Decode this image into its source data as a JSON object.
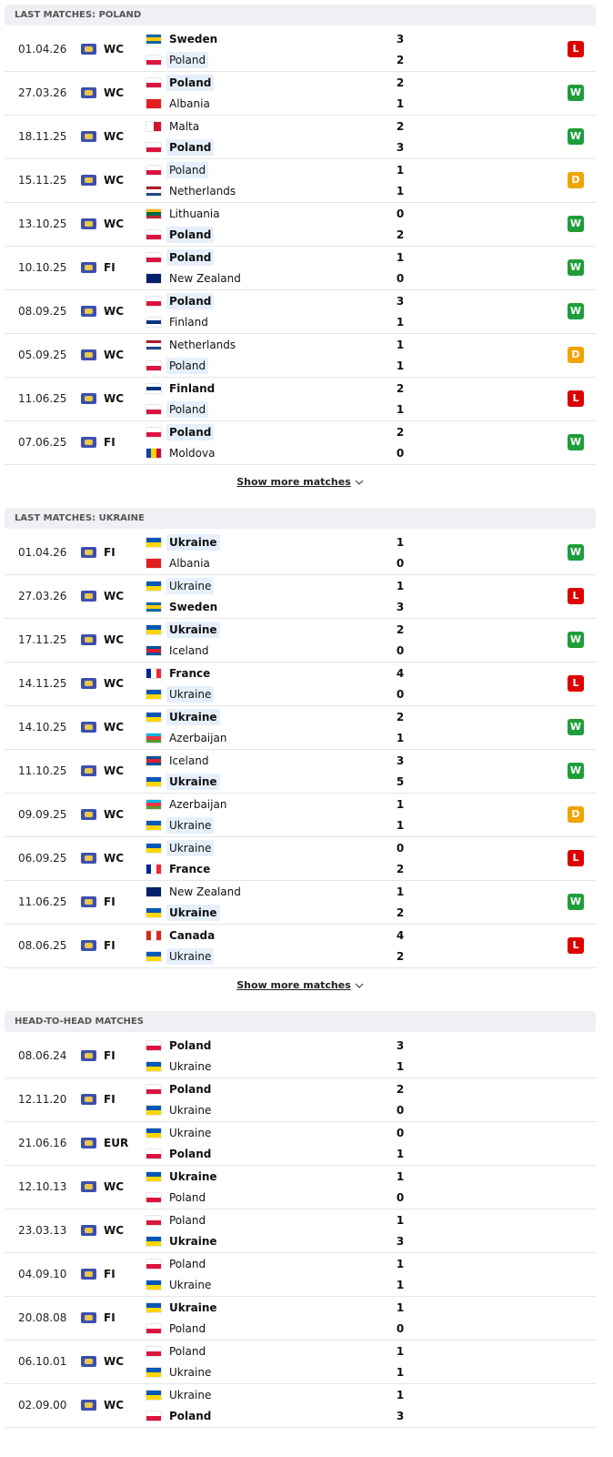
{
  "result_colors": {
    "W": "#1f9d3b",
    "L": "#dc0000",
    "D": "#f0a400"
  },
  "flags": {
    "Poland": {
      "h": [
        "#ffffff",
        "#dc143c"
      ]
    },
    "Sweden": {
      "h": [
        "#006aa7",
        "#fecc00",
        "#006aa7"
      ]
    },
    "Albania": {
      "h": [
        "#e41e20"
      ]
    },
    "Malta": {
      "v": [
        "#ffffff",
        "#cf142b"
      ]
    },
    "Netherlands": {
      "h": [
        "#ae1c28",
        "#ffffff",
        "#21468b"
      ]
    },
    "Lithuania": {
      "h": [
        "#fdb913",
        "#006a44",
        "#c1272d"
      ]
    },
    "New Zealand": {
      "h": [
        "#012169"
      ]
    },
    "Finland": {
      "h": [
        "#ffffff",
        "#003580",
        "#ffffff"
      ]
    },
    "Moldova": {
      "v": [
        "#0046ae",
        "#ffd200",
        "#cc092f"
      ]
    },
    "Ukraine": {
      "h": [
        "#0057b7",
        "#ffd700"
      ]
    },
    "Iceland": {
      "h": [
        "#02529c",
        "#dc1e35",
        "#02529c"
      ]
    },
    "France": {
      "v": [
        "#002395",
        "#ffffff",
        "#ed2939"
      ]
    },
    "Azerbaijan": {
      "h": [
        "#00b5e2",
        "#ef3340",
        "#509e2f"
      ]
    },
    "Canada": {
      "v": [
        "#d52b1e",
        "#ffffff",
        "#d52b1e"
      ]
    }
  },
  "sections": [
    {
      "title": "LAST MATCHES: POLAND",
      "show_more": "Show more matches",
      "matches": [
        {
          "date": "01.04.26",
          "comp": "WC",
          "home": "Sweden",
          "home_score": 3,
          "away": "Poland",
          "away_score": 2,
          "result": "L"
        },
        {
          "date": "27.03.26",
          "comp": "WC",
          "home": "Poland",
          "home_score": 2,
          "away": "Albania",
          "away_score": 1,
          "result": "W"
        },
        {
          "date": "18.11.25",
          "comp": "WC",
          "home": "Malta",
          "home_score": 2,
          "away": "Poland",
          "away_score": 3,
          "result": "W"
        },
        {
          "date": "15.11.25",
          "comp": "WC",
          "home": "Poland",
          "home_score": 1,
          "away": "Netherlands",
          "away_score": 1,
          "result": "D"
        },
        {
          "date": "13.10.25",
          "comp": "WC",
          "home": "Lithuania",
          "home_score": 0,
          "away": "Poland",
          "away_score": 2,
          "result": "W"
        },
        {
          "date": "10.10.25",
          "comp": "FI",
          "home": "Poland",
          "home_score": 1,
          "away": "New Zealand",
          "away_score": 0,
          "result": "W"
        },
        {
          "date": "08.09.25",
          "comp": "WC",
          "home": "Poland",
          "home_score": 3,
          "away": "Finland",
          "away_score": 1,
          "result": "W"
        },
        {
          "date": "05.09.25",
          "comp": "WC",
          "home": "Netherlands",
          "home_score": 1,
          "away": "Poland",
          "away_score": 1,
          "result": "D"
        },
        {
          "date": "11.06.25",
          "comp": "WC",
          "home": "Finland",
          "home_score": 2,
          "away": "Poland",
          "away_score": 1,
          "result": "L"
        },
        {
          "date": "07.06.25",
          "comp": "FI",
          "home": "Poland",
          "home_score": 2,
          "away": "Moldova",
          "away_score": 0,
          "result": "W"
        }
      ]
    },
    {
      "title": "LAST MATCHES: UKRAINE",
      "show_more": "Show more matches",
      "matches": [
        {
          "date": "01.04.26",
          "comp": "FI",
          "home": "Ukraine",
          "home_score": 1,
          "away": "Albania",
          "away_score": 0,
          "result": "W"
        },
        {
          "date": "27.03.26",
          "comp": "WC",
          "home": "Ukraine",
          "home_score": 1,
          "away": "Sweden",
          "away_score": 3,
          "result": "L"
        },
        {
          "date": "17.11.25",
          "comp": "WC",
          "home": "Ukraine",
          "home_score": 2,
          "away": "Iceland",
          "away_score": 0,
          "result": "W"
        },
        {
          "date": "14.11.25",
          "comp": "WC",
          "home": "France",
          "home_score": 4,
          "away": "Ukraine",
          "away_score": 0,
          "result": "L"
        },
        {
          "date": "14.10.25",
          "comp": "WC",
          "home": "Ukraine",
          "home_score": 2,
          "away": "Azerbaijan",
          "away_score": 1,
          "result": "W"
        },
        {
          "date": "11.10.25",
          "comp": "WC",
          "home": "Iceland",
          "home_score": 3,
          "away": "Ukraine",
          "away_score": 5,
          "result": "W"
        },
        {
          "date": "09.09.25",
          "comp": "WC",
          "home": "Azerbaijan",
          "home_score": 1,
          "away": "Ukraine",
          "away_score": 1,
          "result": "D"
        },
        {
          "date": "06.09.25",
          "comp": "WC",
          "home": "Ukraine",
          "home_score": 0,
          "away": "France",
          "away_score": 2,
          "result": "L"
        },
        {
          "date": "11.06.25",
          "comp": "FI",
          "home": "New Zealand",
          "home_score": 1,
          "away": "Ukraine",
          "away_score": 2,
          "result": "W"
        },
        {
          "date": "08.06.25",
          "comp": "FI",
          "home": "Canada",
          "home_score": 4,
          "away": "Ukraine",
          "away_score": 2,
          "result": "L"
        }
      ]
    },
    {
      "title": "HEAD-TO-HEAD MATCHES",
      "matches": [
        {
          "date": "08.06.24",
          "comp": "FI",
          "home": "Poland",
          "home_score": 3,
          "away": "Ukraine",
          "away_score": 1
        },
        {
          "date": "12.11.20",
          "comp": "FI",
          "home": "Poland",
          "home_score": 2,
          "away": "Ukraine",
          "away_score": 0
        },
        {
          "date": "21.06.16",
          "comp": "EUR",
          "home": "Ukraine",
          "home_score": 0,
          "away": "Poland",
          "away_score": 1
        },
        {
          "date": "12.10.13",
          "comp": "WC",
          "home": "Ukraine",
          "home_score": 1,
          "away": "Poland",
          "away_score": 0
        },
        {
          "date": "23.03.13",
          "comp": "WC",
          "home": "Poland",
          "home_score": 1,
          "away": "Ukraine",
          "away_score": 3
        },
        {
          "date": "04.09.10",
          "comp": "FI",
          "home": "Poland",
          "home_score": 1,
          "away": "Ukraine",
          "away_score": 1
        },
        {
          "date": "20.08.08",
          "comp": "FI",
          "home": "Ukraine",
          "home_score": 1,
          "away": "Poland",
          "away_score": 0
        },
        {
          "date": "06.10.01",
          "comp": "WC",
          "home": "Poland",
          "home_score": 1,
          "away": "Ukraine",
          "away_score": 1
        },
        {
          "date": "02.09.00",
          "comp": "WC",
          "home": "Ukraine",
          "home_score": 1,
          "away": "Poland",
          "away_score": 3
        }
      ]
    }
  ]
}
